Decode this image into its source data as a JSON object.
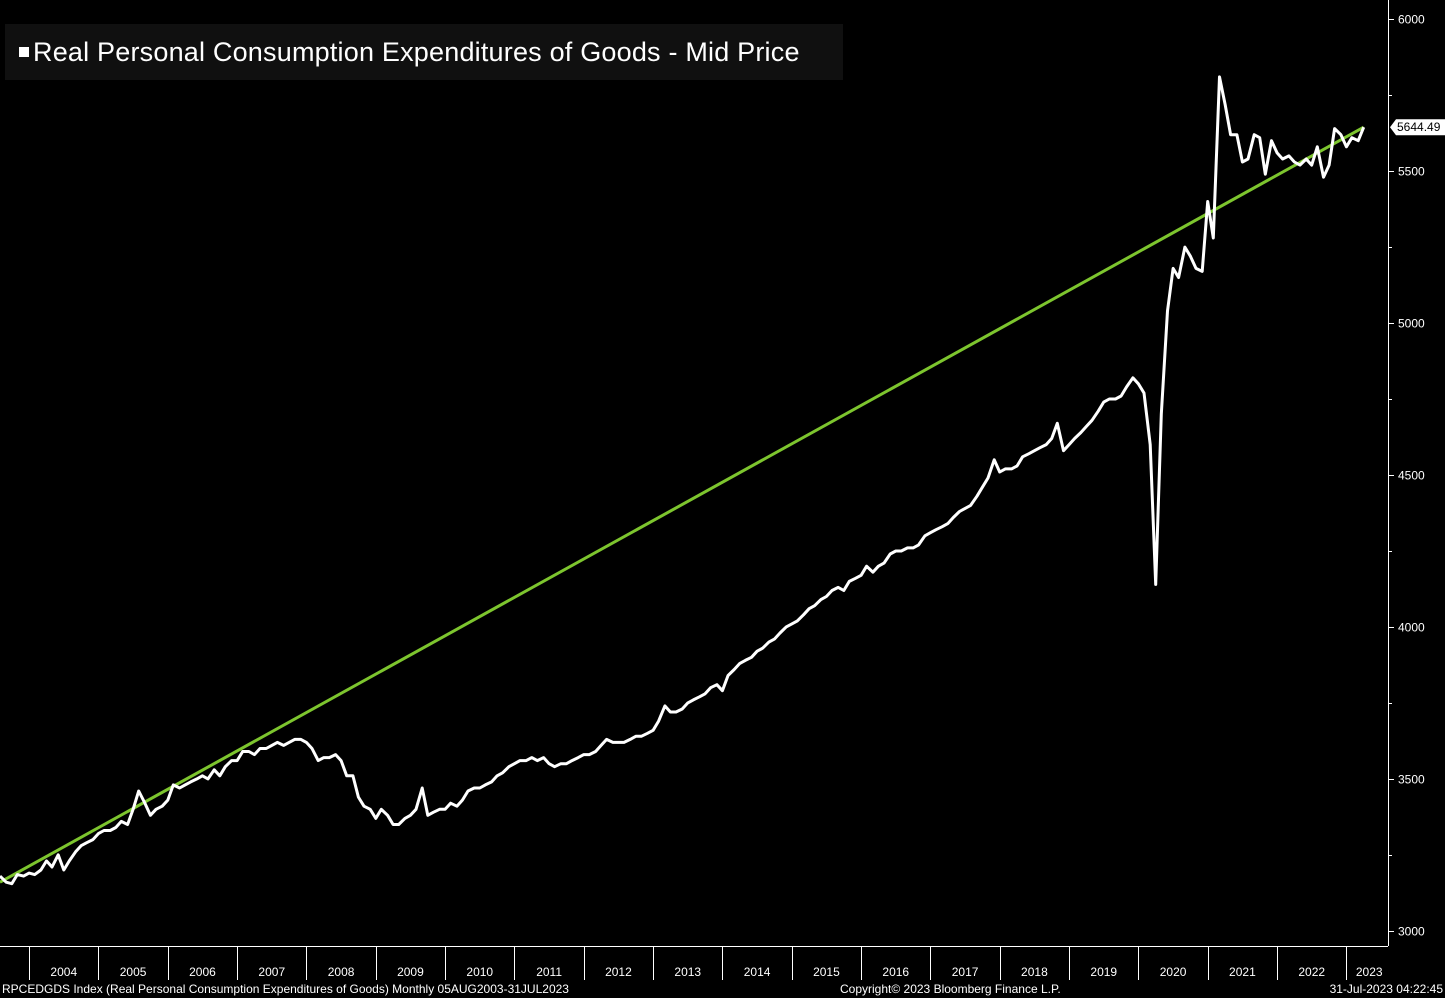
{
  "chart_data": {
    "type": "line",
    "title": "Real Personal Consumption Expenditures of Goods - Mid Price",
    "legend": [
      {
        "name": "Real Personal Consumption Expenditures of Goods - Mid Price",
        "color": "#ffffff"
      }
    ],
    "ylim": [
      2950,
      6050
    ],
    "yticks": [
      3000,
      3500,
      4000,
      4500,
      5000,
      5500,
      6000
    ],
    "xlim": [
      2003.58,
      2023.6
    ],
    "year_labels": [
      "2004",
      "2005",
      "2006",
      "2007",
      "2008",
      "2009",
      "2010",
      "2011",
      "2012",
      "2013",
      "2014",
      "2015",
      "2016",
      "2017",
      "2018",
      "2019",
      "2020",
      "2021",
      "2022",
      "2023"
    ],
    "last_value": "5644.49",
    "series": [
      {
        "name": "Real Personal Consumption Expenditures of Goods",
        "color": "#ffffff",
        "points": [
          [
            2003.58,
            3180
          ],
          [
            2003.67,
            3160
          ],
          [
            2003.75,
            3155
          ],
          [
            2003.83,
            3185
          ],
          [
            2003.92,
            3180
          ],
          [
            2004.0,
            3190
          ],
          [
            2004.08,
            3185
          ],
          [
            2004.17,
            3200
          ],
          [
            2004.25,
            3230
          ],
          [
            2004.33,
            3210
          ],
          [
            2004.42,
            3250
          ],
          [
            2004.5,
            3200
          ],
          [
            2004.58,
            3230
          ],
          [
            2004.67,
            3260
          ],
          [
            2004.75,
            3280
          ],
          [
            2004.83,
            3290
          ],
          [
            2004.92,
            3300
          ],
          [
            2005.0,
            3320
          ],
          [
            2005.08,
            3330
          ],
          [
            2005.17,
            3330
          ],
          [
            2005.25,
            3340
          ],
          [
            2005.33,
            3360
          ],
          [
            2005.42,
            3350
          ],
          [
            2005.5,
            3400
          ],
          [
            2005.58,
            3460
          ],
          [
            2005.67,
            3420
          ],
          [
            2005.75,
            3380
          ],
          [
            2005.83,
            3400
          ],
          [
            2005.92,
            3410
          ],
          [
            2006.0,
            3430
          ],
          [
            2006.08,
            3480
          ],
          [
            2006.17,
            3470
          ],
          [
            2006.25,
            3480
          ],
          [
            2006.33,
            3490
          ],
          [
            2006.42,
            3500
          ],
          [
            2006.5,
            3510
          ],
          [
            2006.58,
            3500
          ],
          [
            2006.67,
            3530
          ],
          [
            2006.75,
            3510
          ],
          [
            2006.83,
            3540
          ],
          [
            2006.92,
            3560
          ],
          [
            2007.0,
            3560
          ],
          [
            2007.08,
            3590
          ],
          [
            2007.17,
            3590
          ],
          [
            2007.25,
            3580
          ],
          [
            2007.33,
            3600
          ],
          [
            2007.42,
            3600
          ],
          [
            2007.5,
            3610
          ],
          [
            2007.58,
            3620
          ],
          [
            2007.67,
            3610
          ],
          [
            2007.75,
            3620
          ],
          [
            2007.83,
            3630
          ],
          [
            2007.92,
            3630
          ],
          [
            2008.0,
            3620
          ],
          [
            2008.08,
            3600
          ],
          [
            2008.17,
            3560
          ],
          [
            2008.25,
            3570
          ],
          [
            2008.33,
            3570
          ],
          [
            2008.42,
            3580
          ],
          [
            2008.5,
            3560
          ],
          [
            2008.58,
            3510
          ],
          [
            2008.67,
            3510
          ],
          [
            2008.75,
            3440
          ],
          [
            2008.83,
            3410
          ],
          [
            2008.92,
            3400
          ],
          [
            2009.0,
            3370
          ],
          [
            2009.08,
            3400
          ],
          [
            2009.17,
            3380
          ],
          [
            2009.25,
            3350
          ],
          [
            2009.33,
            3350
          ],
          [
            2009.42,
            3370
          ],
          [
            2009.5,
            3380
          ],
          [
            2009.58,
            3400
          ],
          [
            2009.67,
            3470
          ],
          [
            2009.75,
            3380
          ],
          [
            2009.83,
            3390
          ],
          [
            2009.92,
            3400
          ],
          [
            2010.0,
            3400
          ],
          [
            2010.08,
            3420
          ],
          [
            2010.17,
            3410
          ],
          [
            2010.25,
            3430
          ],
          [
            2010.33,
            3460
          ],
          [
            2010.42,
            3470
          ],
          [
            2010.5,
            3470
          ],
          [
            2010.58,
            3480
          ],
          [
            2010.67,
            3490
          ],
          [
            2010.75,
            3510
          ],
          [
            2010.83,
            3520
          ],
          [
            2010.92,
            3540
          ],
          [
            2011.0,
            3550
          ],
          [
            2011.08,
            3560
          ],
          [
            2011.17,
            3560
          ],
          [
            2011.25,
            3570
          ],
          [
            2011.33,
            3560
          ],
          [
            2011.42,
            3570
          ],
          [
            2011.5,
            3550
          ],
          [
            2011.58,
            3540
          ],
          [
            2011.67,
            3550
          ],
          [
            2011.75,
            3550
          ],
          [
            2011.83,
            3560
          ],
          [
            2011.92,
            3570
          ],
          [
            2012.0,
            3580
          ],
          [
            2012.08,
            3580
          ],
          [
            2012.17,
            3590
          ],
          [
            2012.25,
            3610
          ],
          [
            2012.33,
            3630
          ],
          [
            2012.42,
            3620
          ],
          [
            2012.5,
            3620
          ],
          [
            2012.58,
            3620
          ],
          [
            2012.67,
            3630
          ],
          [
            2012.75,
            3640
          ],
          [
            2012.83,
            3640
          ],
          [
            2012.92,
            3650
          ],
          [
            2013.0,
            3660
          ],
          [
            2013.08,
            3690
          ],
          [
            2013.17,
            3740
          ],
          [
            2013.25,
            3720
          ],
          [
            2013.33,
            3720
          ],
          [
            2013.42,
            3730
          ],
          [
            2013.5,
            3750
          ],
          [
            2013.58,
            3760
          ],
          [
            2013.67,
            3770
          ],
          [
            2013.75,
            3780
          ],
          [
            2013.83,
            3800
          ],
          [
            2013.92,
            3810
          ],
          [
            2014.0,
            3790
          ],
          [
            2014.08,
            3840
          ],
          [
            2014.17,
            3860
          ],
          [
            2014.25,
            3880
          ],
          [
            2014.33,
            3890
          ],
          [
            2014.42,
            3900
          ],
          [
            2014.5,
            3920
          ],
          [
            2014.58,
            3930
          ],
          [
            2014.67,
            3950
          ],
          [
            2014.75,
            3960
          ],
          [
            2014.83,
            3980
          ],
          [
            2014.92,
            4000
          ],
          [
            2015.0,
            4010
          ],
          [
            2015.08,
            4020
          ],
          [
            2015.17,
            4040
          ],
          [
            2015.25,
            4060
          ],
          [
            2015.33,
            4070
          ],
          [
            2015.42,
            4090
          ],
          [
            2015.5,
            4100
          ],
          [
            2015.58,
            4120
          ],
          [
            2015.67,
            4130
          ],
          [
            2015.75,
            4120
          ],
          [
            2015.83,
            4150
          ],
          [
            2015.92,
            4160
          ],
          [
            2016.0,
            4170
          ],
          [
            2016.08,
            4200
          ],
          [
            2016.17,
            4180
          ],
          [
            2016.25,
            4200
          ],
          [
            2016.33,
            4210
          ],
          [
            2016.42,
            4240
          ],
          [
            2016.5,
            4250
          ],
          [
            2016.58,
            4250
          ],
          [
            2016.67,
            4260
          ],
          [
            2016.75,
            4260
          ],
          [
            2016.83,
            4270
          ],
          [
            2016.92,
            4300
          ],
          [
            2017.0,
            4310
          ],
          [
            2017.08,
            4320
          ],
          [
            2017.17,
            4330
          ],
          [
            2017.25,
            4340
          ],
          [
            2017.33,
            4360
          ],
          [
            2017.42,
            4380
          ],
          [
            2017.5,
            4390
          ],
          [
            2017.58,
            4400
          ],
          [
            2017.67,
            4430
          ],
          [
            2017.75,
            4460
          ],
          [
            2017.83,
            4490
          ],
          [
            2017.92,
            4550
          ],
          [
            2018.0,
            4510
          ],
          [
            2018.08,
            4520
          ],
          [
            2018.17,
            4520
          ],
          [
            2018.25,
            4530
          ],
          [
            2018.33,
            4560
          ],
          [
            2018.42,
            4570
          ],
          [
            2018.5,
            4580
          ],
          [
            2018.58,
            4590
          ],
          [
            2018.67,
            4600
          ],
          [
            2018.75,
            4620
          ],
          [
            2018.83,
            4670
          ],
          [
            2018.92,
            4580
          ],
          [
            2019.0,
            4600
          ],
          [
            2019.08,
            4620
          ],
          [
            2019.17,
            4640
          ],
          [
            2019.25,
            4660
          ],
          [
            2019.33,
            4680
          ],
          [
            2019.42,
            4710
          ],
          [
            2019.5,
            4740
          ],
          [
            2019.58,
            4750
          ],
          [
            2019.67,
            4750
          ],
          [
            2019.75,
            4760
          ],
          [
            2019.83,
            4790
          ],
          [
            2019.92,
            4820
          ],
          [
            2020.0,
            4800
          ],
          [
            2020.08,
            4770
          ],
          [
            2020.17,
            4600
          ],
          [
            2020.25,
            4140
          ],
          [
            2020.33,
            4700
          ],
          [
            2020.42,
            5040
          ],
          [
            2020.5,
            5180
          ],
          [
            2020.58,
            5150
          ],
          [
            2020.67,
            5250
          ],
          [
            2020.75,
            5220
          ],
          [
            2020.83,
            5180
          ],
          [
            2020.92,
            5170
          ],
          [
            2021.0,
            5400
          ],
          [
            2021.08,
            5280
          ],
          [
            2021.17,
            5810
          ],
          [
            2021.25,
            5720
          ],
          [
            2021.33,
            5620
          ],
          [
            2021.42,
            5620
          ],
          [
            2021.5,
            5530
          ],
          [
            2021.58,
            5540
          ],
          [
            2021.67,
            5620
          ],
          [
            2021.75,
            5610
          ],
          [
            2021.83,
            5490
          ],
          [
            2021.92,
            5600
          ],
          [
            2022.0,
            5560
          ],
          [
            2022.08,
            5540
          ],
          [
            2022.17,
            5550
          ],
          [
            2022.25,
            5530
          ],
          [
            2022.33,
            5520
          ],
          [
            2022.42,
            5540
          ],
          [
            2022.5,
            5520
          ],
          [
            2022.58,
            5580
          ],
          [
            2022.67,
            5480
          ],
          [
            2022.75,
            5520
          ],
          [
            2022.83,
            5640
          ],
          [
            2022.92,
            5620
          ],
          [
            2023.0,
            5580
          ],
          [
            2023.08,
            5610
          ],
          [
            2023.17,
            5600
          ],
          [
            2023.25,
            5644.49
          ]
        ]
      },
      {
        "name": "Trend line",
        "color": "#7dc52e",
        "points": [
          [
            2003.58,
            3160
          ],
          [
            2023.25,
            5644.49
          ]
        ]
      }
    ]
  },
  "footer": {
    "left": "RPCEDGDS Index (Real Personal Consumption Expenditures of Goods)  Monthly 05AUG2003-31JUL2023",
    "center": "Copyright© 2023 Bloomberg Finance L.P.",
    "right": "31-Jul-2023 04:22:45"
  }
}
